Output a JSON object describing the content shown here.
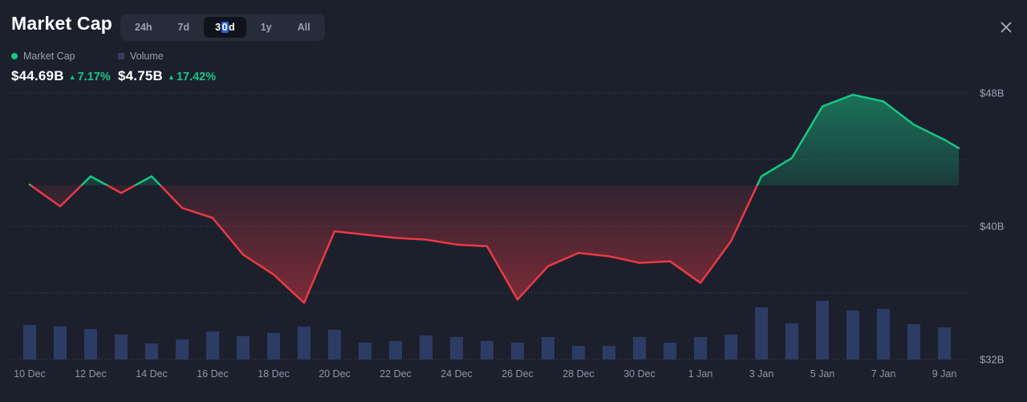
{
  "header": {
    "title": "Market Cap"
  },
  "time_range": {
    "options": [
      "24h",
      "7d",
      "30d",
      "1y",
      "All"
    ],
    "active": "30d",
    "active_highlight_char_index": 1
  },
  "legend": {
    "market_cap": {
      "label": "Market Cap",
      "value": "$44.69B",
      "up_arrow": "▲",
      "change": "7.17%"
    },
    "volume": {
      "label": "Volume",
      "value": "$4.75B",
      "up_arrow": "▲",
      "change": "17.42%"
    }
  },
  "chart_data": {
    "type": "line",
    "title": "Market Cap (30d) with Volume bars",
    "x": [
      "10 Dec",
      "11 Dec",
      "12 Dec",
      "13 Dec",
      "14 Dec",
      "15 Dec",
      "16 Dec",
      "17 Dec",
      "18 Dec",
      "19 Dec",
      "20 Dec",
      "21 Dec",
      "22 Dec",
      "23 Dec",
      "24 Dec",
      "25 Dec",
      "26 Dec",
      "27 Dec",
      "28 Dec",
      "29 Dec",
      "30 Dec",
      "31 Dec",
      "1 Jan",
      "2 Jan",
      "3 Jan",
      "4 Jan",
      "5 Jan",
      "6 Jan",
      "7 Jan",
      "8 Jan",
      "9 Jan"
    ],
    "series": [
      {
        "name": "Market Cap ($B)",
        "values": [
          42.5,
          41.2,
          43.0,
          42.0,
          43.0,
          41.1,
          40.5,
          38.3,
          37.1,
          35.4,
          39.7,
          39.5,
          39.3,
          39.2,
          38.9,
          38.8,
          35.6,
          37.6,
          38.4,
          38.2,
          37.8,
          37.9,
          36.6,
          39.1,
          43.0,
          44.1,
          47.2,
          47.9,
          47.5,
          46.1,
          45.2
        ]
      },
      {
        "name": "Volume (relative height px)",
        "values": [
          43,
          41,
          38,
          31,
          20,
          25,
          35,
          29,
          33,
          41,
          37,
          21,
          23,
          30,
          28,
          23,
          21,
          28,
          17,
          17,
          28,
          21,
          28,
          31,
          65,
          45,
          73,
          61,
          63,
          44,
          40
        ]
      }
    ],
    "market_cap_now_b": 44.69,
    "baseline_value_b": 42.45,
    "ylim": [
      32,
      48
    ],
    "y_ticks": [
      {
        "value": 48,
        "label": "$48B"
      },
      {
        "value": 44,
        "label": ""
      },
      {
        "value": 40,
        "label": "$40B"
      },
      {
        "value": 36,
        "label": ""
      },
      {
        "value": 32,
        "label": "$32B"
      }
    ],
    "x_ticks": [
      {
        "i": 0,
        "label": "10 Dec"
      },
      {
        "i": 2,
        "label": "12 Dec"
      },
      {
        "i": 4,
        "label": "14 Dec"
      },
      {
        "i": 6,
        "label": "16 Dec"
      },
      {
        "i": 8,
        "label": "18 Dec"
      },
      {
        "i": 10,
        "label": "20 Dec"
      },
      {
        "i": 12,
        "label": "22 Dec"
      },
      {
        "i": 14,
        "label": "24 Dec"
      },
      {
        "i": 16,
        "label": "26 Dec"
      },
      {
        "i": 18,
        "label": "28 Dec"
      },
      {
        "i": 20,
        "label": "30 Dec"
      },
      {
        "i": 22,
        "label": "1 Jan"
      },
      {
        "i": 24,
        "label": "3 Jan"
      },
      {
        "i": 26,
        "label": "5 Jan"
      },
      {
        "i": 28,
        "label": "7 Jan"
      },
      {
        "i": 30,
        "label": "9 Jan"
      }
    ],
    "grid": "dotted horizontal",
    "legend_position": "top-left",
    "colors": {
      "up": "#16c784",
      "down": "#ea3943",
      "volume_bar": "#2d3c64",
      "grid": "rgba(148,158,178,0.35)",
      "axis_label": "#9aa2b4",
      "background": "#1c202d"
    }
  }
}
